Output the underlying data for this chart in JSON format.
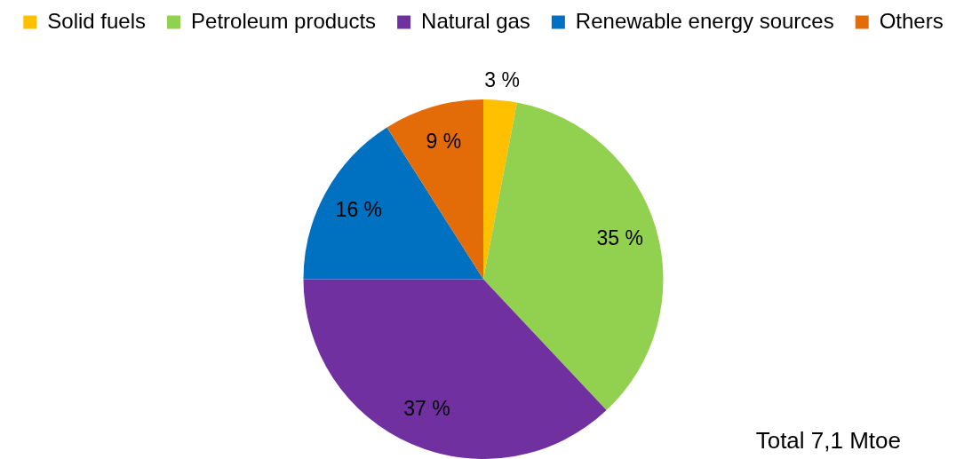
{
  "chart_data": {
    "type": "pie",
    "categories": [
      "Solid fuels",
      "Petroleum products",
      "Natural gas",
      "Renewable energy sources",
      "Others"
    ],
    "values": [
      3,
      35,
      37,
      16,
      9
    ],
    "colors": [
      "#ffc000",
      "#92d050",
      "#7030a0",
      "#0070c0",
      "#e36c09"
    ],
    "value_labels": [
      "3 %",
      "35 %",
      "37 %",
      "16 %",
      "9 %"
    ],
    "legend": "top",
    "annotations": [
      "Total 7,1 Mtoe"
    ]
  }
}
